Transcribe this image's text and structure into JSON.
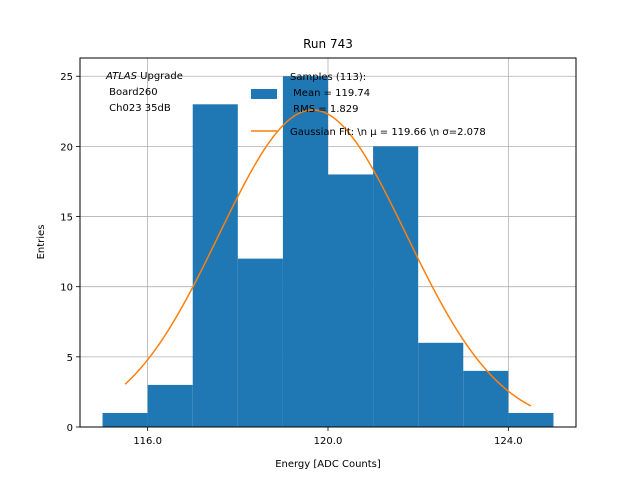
{
  "chart_data": {
    "type": "bar",
    "title": "Run 743",
    "xlabel": "Energy [ADC Counts]",
    "ylabel": "Entries",
    "xlim": [
      114.5,
      125.5
    ],
    "ylim": [
      0,
      26.3
    ],
    "grid": true,
    "xticks": [
      116.0,
      120.0,
      124.0
    ],
    "xtick_labels": [
      "116.0",
      "120.0",
      "124.0"
    ],
    "yticks": [
      0,
      5,
      10,
      15,
      20,
      25
    ],
    "ytick_labels": [
      "0",
      "5",
      "10",
      "15",
      "20",
      "25"
    ],
    "bins": [
      {
        "x0": 115,
        "x1": 116,
        "count": 1
      },
      {
        "x0": 116,
        "x1": 117,
        "count": 3
      },
      {
        "x0": 117,
        "x1": 118,
        "count": 23
      },
      {
        "x0": 118,
        "x1": 119,
        "count": 12
      },
      {
        "x0": 119,
        "x1": 120,
        "count": 25
      },
      {
        "x0": 120,
        "x1": 121,
        "count": 18
      },
      {
        "x0": 121,
        "x1": 122,
        "count": 20
      },
      {
        "x0": 122,
        "x1": 123,
        "count": 6
      },
      {
        "x0": 123,
        "x1": 124,
        "count": 4
      },
      {
        "x0": 124,
        "x1": 125,
        "count": 1
      }
    ],
    "fit": {
      "amplitude": 22.6,
      "mu": 119.66,
      "sigma": 2.078,
      "x_range": [
        115.5,
        124.5
      ]
    },
    "colors": {
      "histogram": "#1f77b4",
      "fit": "#ff7f0e",
      "grid": "#b0b0b0"
    },
    "legend": {
      "placement": "top-right",
      "entries": [
        {
          "label_lines": [
            "Samples (113):",
            " Mean = 119.74",
            " RMS = 1.829"
          ],
          "kind": "patch"
        },
        {
          "label_lines": [
            "Gaussian Fit: \\n μ = 119.66 \\n σ=2.078"
          ],
          "kind": "line"
        }
      ]
    },
    "annotation": {
      "italic": "ATLAS",
      "rest": " Upgrade",
      "lines": [
        " Board260",
        " Ch023 35dB"
      ]
    }
  }
}
